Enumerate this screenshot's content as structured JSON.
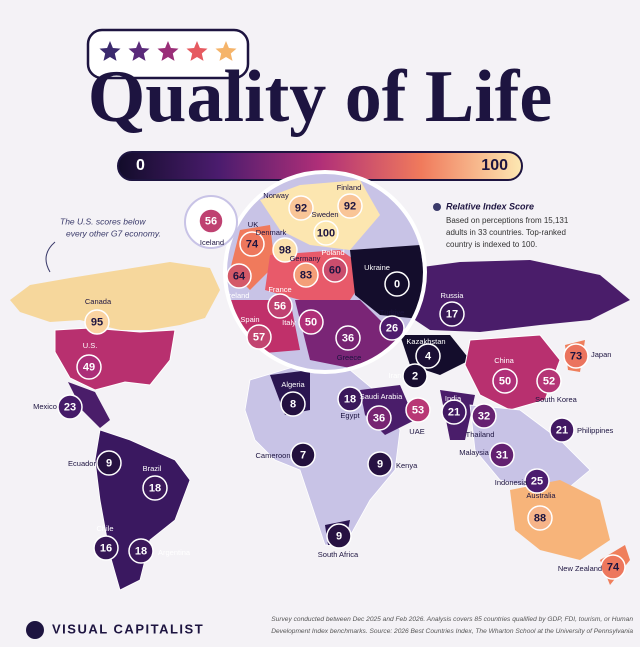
{
  "header": {
    "title": "Quality of Life"
  },
  "legend": {
    "min": 0,
    "max": 100
  },
  "notes": {
    "g7": [
      "The U.S. scores below",
      "every other G7 economy."
    ]
  },
  "info": {
    "title": "Relative Index Score",
    "lines": [
      "Based on perceptions from 15,131",
      "adults in 33 countries. Top-ranked",
      "country is indexed to 100."
    ]
  },
  "countries": [
    {
      "name": "Canada",
      "score": 95
    },
    {
      "name": "U.S.",
      "score": 49
    },
    {
      "name": "Mexico",
      "score": 23
    },
    {
      "name": "Ecuador",
      "score": 9
    },
    {
      "name": "Brazil",
      "score": 18
    },
    {
      "name": "Chile",
      "score": 16
    },
    {
      "name": "Argentina",
      "score": 18
    },
    {
      "name": "Iceland",
      "score": 56
    },
    {
      "name": "UK",
      "score": 74
    },
    {
      "name": "Ireland",
      "score": 64
    },
    {
      "name": "Norway",
      "score": 92
    },
    {
      "name": "Finland",
      "score": 92
    },
    {
      "name": "Sweden",
      "score": 100
    },
    {
      "name": "Denmark",
      "score": 98
    },
    {
      "name": "Germany",
      "score": 83
    },
    {
      "name": "Poland",
      "score": 60
    },
    {
      "name": "Ukraine",
      "score": 0
    },
    {
      "name": "France",
      "score": 56
    },
    {
      "name": "Spain",
      "score": 57
    },
    {
      "name": "Italy",
      "score": 50
    },
    {
      "name": "Greece",
      "score": 36
    },
    {
      "name": "Türkiye",
      "score": 26
    },
    {
      "name": "Russia",
      "score": 17
    },
    {
      "name": "Kazakhstan",
      "score": 4
    },
    {
      "name": "Iran",
      "score": 2
    },
    {
      "name": "Algeria",
      "score": 8
    },
    {
      "name": "Egypt",
      "score": 18
    },
    {
      "name": "Saudi Arabia",
      "score": 36
    },
    {
      "name": "UAE",
      "score": 53
    },
    {
      "name": "India",
      "score": 21
    },
    {
      "name": "Thailand",
      "score": 32
    },
    {
      "name": "China",
      "score": 50
    },
    {
      "name": "South Korea",
      "score": 52
    },
    {
      "name": "Japan",
      "score": 73
    },
    {
      "name": "Philippines",
      "score": 21
    },
    {
      "name": "Malaysia",
      "score": 31
    },
    {
      "name": "Indonesia",
      "score": 25
    },
    {
      "name": "Australia",
      "score": 88
    },
    {
      "name": "New Zealand",
      "score": 74
    },
    {
      "name": "Cameroon",
      "score": 7
    },
    {
      "name": "Kenya",
      "score": 9
    },
    {
      "name": "South Africa",
      "score": 9
    }
  ],
  "footer": {
    "brand": "VISUAL CAPITALIST",
    "source": [
      "Survey conducted between Dec 2025 and Feb 2026. Analysis covers 85 countries qualified by GDP, FDI, tourism, or Human",
      "Development Index benchmarks. Source: 2026 Best Countries Index, The Wharton School at the University of Pennsylvania"
    ]
  }
}
